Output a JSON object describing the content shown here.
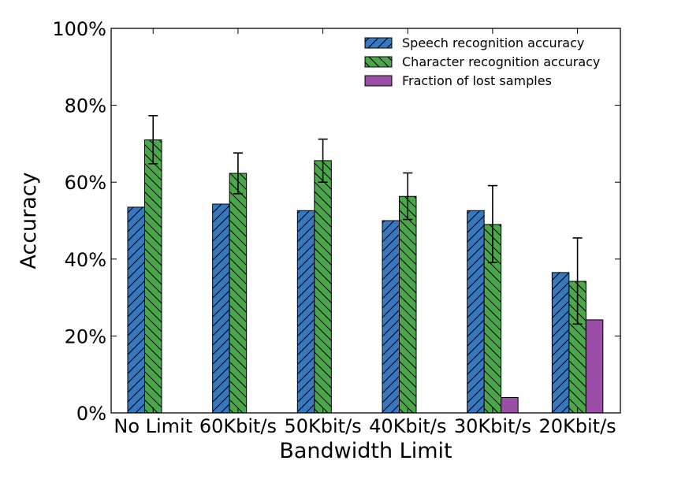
{
  "chart_data": {
    "type": "bar",
    "title": "",
    "xlabel": "Bandwidth Limit",
    "ylabel": "Accuracy",
    "ylim": [
      0,
      100
    ],
    "yticks": [
      "0%",
      "20%",
      "40%",
      "60%",
      "80%",
      "100%"
    ],
    "grid": false,
    "legend_position": "top-right",
    "categories": [
      "No Limit",
      "60Kbit/s",
      "50Kbit/s",
      "40Kbit/s",
      "30Kbit/s",
      "20Kbit/s"
    ],
    "series": [
      {
        "name": "Speech recognition accuracy",
        "color": "#3a78be",
        "hatch": "forward",
        "values": [
          53.5,
          54.3,
          52.6,
          50.0,
          52.6,
          36.5
        ],
        "errors": [
          null,
          null,
          null,
          null,
          null,
          null
        ]
      },
      {
        "name": "Character recognition accuracy",
        "color": "#4aa84a",
        "hatch": "back",
        "values": [
          71.0,
          62.3,
          65.6,
          56.3,
          49.0,
          34.2
        ],
        "errors": [
          [
            64.8,
            77.3
          ],
          [
            57.0,
            67.6
          ],
          [
            60.0,
            71.2
          ],
          [
            50.3,
            62.4
          ],
          [
            39.1,
            59.1
          ],
          [
            23.1,
            45.5
          ]
        ]
      },
      {
        "name": "Fraction of lost samples",
        "color": "#9a4ea6",
        "hatch": "none",
        "values": [
          0,
          0,
          0,
          0,
          4.0,
          24.2
        ],
        "errors": [
          null,
          null,
          null,
          null,
          null,
          null
        ]
      }
    ]
  }
}
